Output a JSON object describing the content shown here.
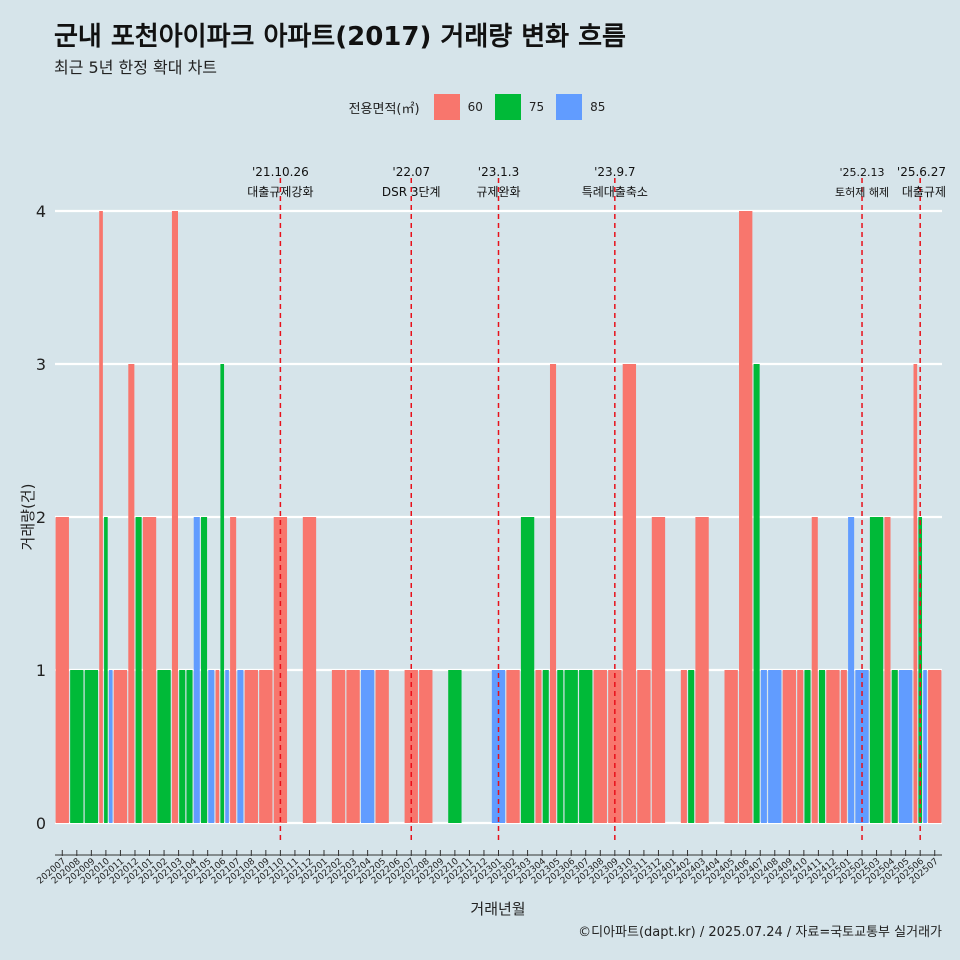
{
  "chart_data": {
    "type": "bar",
    "title": "군내 포천아이파크 아파트(2017) 거래량 변화 흐름",
    "subtitle": "최근 5년 한정 확대 차트",
    "xlabel": "거래년월",
    "ylabel": "거래량(건)",
    "ylim": [
      0,
      4
    ],
    "y_ticks": [
      0,
      1,
      2,
      3,
      4
    ],
    "grid": true,
    "legend": {
      "title": "전용면적(㎡)",
      "placement": "top-center",
      "entries": [
        {
          "name": "60",
          "color": "#f8766d"
        },
        {
          "name": "75",
          "color": "#00ba38"
        },
        {
          "name": "85",
          "color": "#619cff"
        }
      ]
    },
    "categories": [
      "202007",
      "202008",
      "202009",
      "202010",
      "202011",
      "202012",
      "202101",
      "202102",
      "202103",
      "202104",
      "202105",
      "202106",
      "202107",
      "202108",
      "202109",
      "202110",
      "202111",
      "202112",
      "202201",
      "202202",
      "202203",
      "202204",
      "202205",
      "202206",
      "202207",
      "202208",
      "202209",
      "202210",
      "202211",
      "202212",
      "202301",
      "202302",
      "202303",
      "202304",
      "202305",
      "202306",
      "202307",
      "202308",
      "202309",
      "202310",
      "202311",
      "202312",
      "202401",
      "202402",
      "202403",
      "202404",
      "202405",
      "202406",
      "202407",
      "202408",
      "202409",
      "202410",
      "202411",
      "202412",
      "202501",
      "202502",
      "202503",
      "202504",
      "202505",
      "202506",
      "202507"
    ],
    "series": [
      {
        "name": "60",
        "values": [
          2,
          0,
          0,
          4,
          1,
          3,
          2,
          0,
          4,
          0,
          0,
          1,
          2,
          1,
          1,
          2,
          0,
          2,
          0,
          1,
          1,
          0,
          1,
          0,
          1,
          1,
          0,
          0,
          0,
          0,
          0,
          1,
          0,
          1,
          3,
          0,
          0,
          1,
          1,
          3,
          1,
          2,
          0,
          1,
          2,
          0,
          1,
          4,
          0,
          0,
          1,
          1,
          2,
          1,
          1,
          0,
          0,
          2,
          0,
          3,
          1
        ]
      },
      {
        "name": "75",
        "values": [
          0,
          1,
          1,
          2,
          0,
          2,
          0,
          1,
          1,
          1,
          2,
          3,
          0,
          0,
          0,
          0,
          0,
          0,
          0,
          0,
          0,
          0,
          0,
          0,
          0,
          0,
          0,
          1,
          0,
          0,
          0,
          0,
          2,
          1,
          1,
          1,
          1,
          0,
          0,
          0,
          0,
          0,
          0,
          1,
          0,
          0,
          0,
          0,
          3,
          0,
          0,
          1,
          1,
          0,
          0,
          0,
          2,
          1,
          0,
          2,
          0
        ]
      },
      {
        "name": "85",
        "values": [
          0,
          0,
          0,
          1,
          0,
          0,
          0,
          0,
          0,
          2,
          1,
          1,
          1,
          0,
          0,
          0,
          0,
          0,
          0,
          0,
          0,
          1,
          0,
          0,
          0,
          0,
          0,
          0,
          0,
          0,
          1,
          0,
          0,
          0,
          0,
          0,
          0,
          0,
          0,
          0,
          0,
          0,
          0,
          0,
          0,
          0,
          0,
          0,
          1,
          1,
          0,
          0,
          0,
          0,
          2,
          1,
          0,
          0,
          1,
          1,
          0
        ]
      }
    ],
    "annotations": [
      {
        "month": "202110",
        "date": "'21.10.26",
        "label": "대출규제강화"
      },
      {
        "month": "202207",
        "date": "'22.07",
        "label": "DSR 3단계"
      },
      {
        "month": "202301",
        "date": "'23.1.3",
        "label": "규제완화"
      },
      {
        "month": "202309",
        "date": "'23.9.7",
        "label": "특례대출축소"
      },
      {
        "month": "202502",
        "date": "'25.2.13",
        "label": "토허제 해제"
      },
      {
        "month": "202506",
        "date": "'25.6.27",
        "label": "대출규제"
      }
    ],
    "caption": "©디아파트(dapt.kr) / 2025.07.24 / 자료=국토교통부 실거래가"
  }
}
